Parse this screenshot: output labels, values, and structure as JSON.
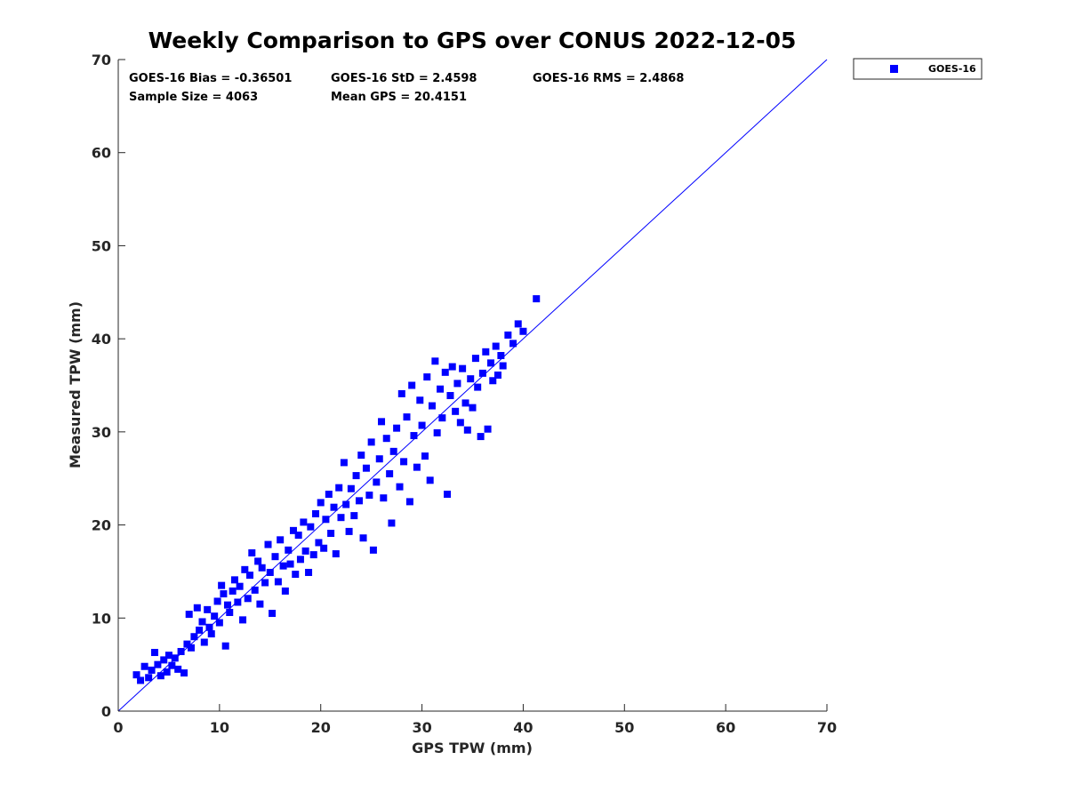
{
  "chart_data": {
    "type": "scatter",
    "title": "Weekly Comparison to GPS over CONUS 2022-12-05",
    "xlabel": "GPS TPW (mm)",
    "ylabel": "Measured TPW (mm)",
    "xlim": [
      0,
      70
    ],
    "ylim": [
      0,
      70
    ],
    "xticks": [
      0,
      10,
      20,
      30,
      40,
      50,
      60,
      70
    ],
    "yticks": [
      0,
      10,
      20,
      30,
      40,
      50,
      60,
      70
    ],
    "grid": false,
    "legend_position": "outside-top-right",
    "reference_line": {
      "from": [
        0,
        0
      ],
      "to": [
        70,
        70
      ],
      "color": "#0000ff"
    },
    "stats": {
      "bias": "GOES-16 Bias = -0.36501",
      "std": "GOES-16 StD = 2.4598",
      "rms": "GOES-16 RMS = 2.4868",
      "sample_size": "Sample Size = 4063",
      "mean_gps": "Mean GPS = 20.4151"
    },
    "series": [
      {
        "name": "GOES-16",
        "color": "#0000ff",
        "marker": "square",
        "points": [
          [
            1.8,
            3.9
          ],
          [
            2.2,
            3.3
          ],
          [
            2.6,
            4.8
          ],
          [
            3.0,
            3.6
          ],
          [
            3.3,
            4.4
          ],
          [
            3.6,
            6.3
          ],
          [
            3.9,
            5.0
          ],
          [
            4.2,
            3.8
          ],
          [
            4.5,
            5.5
          ],
          [
            4.8,
            4.2
          ],
          [
            5.0,
            6.0
          ],
          [
            5.3,
            4.9
          ],
          [
            5.6,
            5.7
          ],
          [
            5.9,
            4.5
          ],
          [
            6.2,
            6.4
          ],
          [
            6.5,
            4.1
          ],
          [
            6.8,
            7.2
          ],
          [
            7.0,
            10.4
          ],
          [
            7.2,
            6.8
          ],
          [
            7.5,
            8.0
          ],
          [
            7.8,
            11.1
          ],
          [
            8.0,
            8.7
          ],
          [
            8.3,
            9.6
          ],
          [
            8.5,
            7.4
          ],
          [
            8.8,
            10.9
          ],
          [
            9.0,
            9.0
          ],
          [
            9.2,
            8.3
          ],
          [
            9.5,
            10.2
          ],
          [
            9.8,
            11.8
          ],
          [
            10.0,
            9.5
          ],
          [
            10.2,
            13.5
          ],
          [
            10.4,
            12.6
          ],
          [
            10.6,
            7.0
          ],
          [
            10.8,
            11.4
          ],
          [
            11.0,
            10.6
          ],
          [
            11.3,
            12.9
          ],
          [
            11.5,
            14.1
          ],
          [
            11.8,
            11.7
          ],
          [
            12.0,
            13.4
          ],
          [
            12.3,
            9.8
          ],
          [
            12.5,
            15.2
          ],
          [
            12.8,
            12.1
          ],
          [
            13.0,
            14.6
          ],
          [
            13.2,
            17.0
          ],
          [
            13.5,
            13.0
          ],
          [
            13.8,
            16.1
          ],
          [
            14.0,
            11.5
          ],
          [
            14.2,
            15.4
          ],
          [
            14.5,
            13.8
          ],
          [
            14.8,
            17.9
          ],
          [
            15.0,
            14.9
          ],
          [
            15.2,
            10.5
          ],
          [
            15.5,
            16.6
          ],
          [
            15.8,
            13.9
          ],
          [
            16.0,
            18.4
          ],
          [
            16.3,
            15.6
          ],
          [
            16.5,
            12.9
          ],
          [
            16.8,
            17.3
          ],
          [
            17.0,
            15.8
          ],
          [
            17.3,
            19.4
          ],
          [
            17.5,
            14.7
          ],
          [
            17.8,
            18.9
          ],
          [
            18.0,
            16.3
          ],
          [
            18.3,
            20.3
          ],
          [
            18.5,
            17.2
          ],
          [
            18.8,
            14.9
          ],
          [
            19.0,
            19.8
          ],
          [
            19.3,
            16.8
          ],
          [
            19.5,
            21.2
          ],
          [
            19.8,
            18.1
          ],
          [
            20.0,
            22.4
          ],
          [
            20.3,
            17.5
          ],
          [
            20.5,
            20.6
          ],
          [
            20.8,
            23.3
          ],
          [
            21.0,
            19.1
          ],
          [
            21.3,
            21.9
          ],
          [
            21.5,
            16.9
          ],
          [
            21.8,
            24.0
          ],
          [
            22.0,
            20.8
          ],
          [
            22.3,
            26.7
          ],
          [
            22.5,
            22.2
          ],
          [
            22.8,
            19.3
          ],
          [
            23.0,
            23.9
          ],
          [
            23.3,
            21.0
          ],
          [
            23.5,
            25.3
          ],
          [
            23.8,
            22.6
          ],
          [
            24.0,
            27.5
          ],
          [
            24.2,
            18.6
          ],
          [
            24.5,
            26.1
          ],
          [
            24.8,
            23.2
          ],
          [
            25.0,
            28.9
          ],
          [
            25.2,
            17.3
          ],
          [
            25.5,
            24.6
          ],
          [
            25.8,
            27.1
          ],
          [
            26.0,
            31.1
          ],
          [
            26.2,
            22.9
          ],
          [
            26.5,
            29.3
          ],
          [
            26.8,
            25.5
          ],
          [
            27.0,
            20.2
          ],
          [
            27.2,
            27.9
          ],
          [
            27.5,
            30.4
          ],
          [
            27.8,
            24.1
          ],
          [
            28.0,
            34.1
          ],
          [
            28.2,
            26.8
          ],
          [
            28.5,
            31.6
          ],
          [
            28.8,
            22.5
          ],
          [
            29.0,
            35.0
          ],
          [
            29.2,
            29.6
          ],
          [
            29.5,
            26.2
          ],
          [
            29.8,
            33.4
          ],
          [
            30.0,
            30.7
          ],
          [
            30.3,
            27.4
          ],
          [
            30.5,
            35.9
          ],
          [
            30.8,
            24.8
          ],
          [
            31.0,
            32.8
          ],
          [
            31.3,
            37.6
          ],
          [
            31.5,
            29.9
          ],
          [
            31.8,
            34.6
          ],
          [
            32.0,
            31.5
          ],
          [
            32.3,
            36.4
          ],
          [
            32.5,
            23.3
          ],
          [
            32.8,
            33.9
          ],
          [
            33.0,
            37.0
          ],
          [
            33.3,
            32.2
          ],
          [
            33.5,
            35.2
          ],
          [
            33.8,
            31.0
          ],
          [
            34.0,
            36.8
          ],
          [
            34.3,
            33.1
          ],
          [
            34.5,
            30.2
          ],
          [
            34.8,
            35.7
          ],
          [
            35.0,
            32.6
          ],
          [
            35.3,
            37.9
          ],
          [
            35.5,
            34.8
          ],
          [
            35.8,
            29.5
          ],
          [
            36.0,
            36.3
          ],
          [
            36.3,
            38.6
          ],
          [
            36.5,
            30.3
          ],
          [
            36.8,
            37.4
          ],
          [
            37.0,
            35.5
          ],
          [
            37.3,
            39.2
          ],
          [
            37.5,
            36.1
          ],
          [
            37.8,
            38.2
          ],
          [
            38.0,
            37.1
          ],
          [
            38.5,
            40.4
          ],
          [
            39.0,
            39.5
          ],
          [
            39.5,
            41.6
          ],
          [
            40.0,
            40.8
          ],
          [
            41.3,
            44.3
          ]
        ]
      }
    ]
  }
}
